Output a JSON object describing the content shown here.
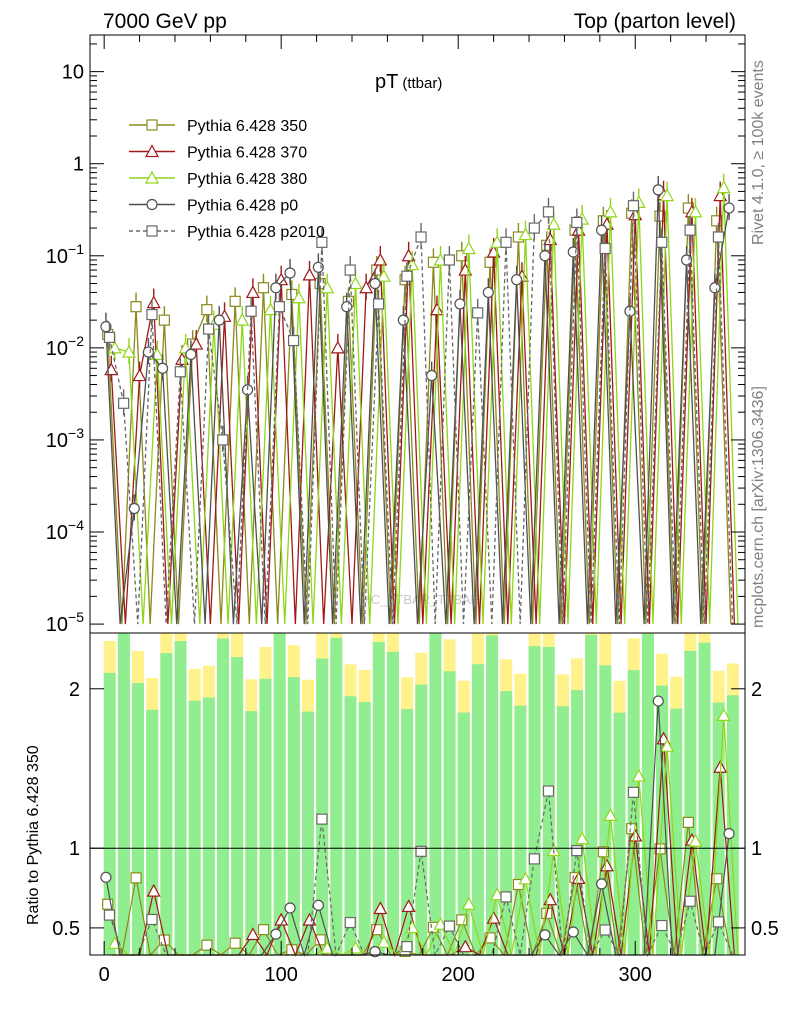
{
  "header": {
    "left": "7000 GeV pp",
    "right": "Top (parton level)"
  },
  "side_labels": {
    "rivet": "Rivet 4.1.0, ≥ 100k events",
    "mcplots": "mcplots.cern.ch [arXiv:1306.3436]"
  },
  "watermark": "MC_TTBAR_TTBAR",
  "chart_data": {
    "type": "line",
    "title_main": "pT",
    "title_sub": "(ttbar)",
    "xlabel": "",
    "ylabel_ratio": "Ratio to Pythia 6.428 350",
    "xlim": [
      -8,
      362
    ],
    "ylim": [
      8e-06,
      25
    ],
    "ylim_ratio": [
      0.33,
      2.35
    ],
    "yscale": "log",
    "x_ticks": [
      "0",
      "100",
      "200",
      "300"
    ],
    "x_tick_values": [
      0,
      100,
      200,
      300
    ],
    "y_ticks": [
      {
        "value": 10,
        "base": "10",
        "exp": ""
      },
      {
        "value": 1,
        "base": "1",
        "exp": ""
      },
      {
        "value": 0.1,
        "base": "10",
        "exp": "−1"
      },
      {
        "value": 0.01,
        "base": "10",
        "exp": "−2"
      },
      {
        "value": 0.001,
        "base": "10",
        "exp": "−3"
      },
      {
        "value": 0.0001,
        "base": "10",
        "exp": "−4"
      },
      {
        "value": 1e-05,
        "base": "10",
        "exp": "−5"
      }
    ],
    "ratio_ticks": [
      "0.5",
      "1",
      "2"
    ],
    "ratio_tick_values": [
      0.5,
      1,
      2
    ],
    "series": [
      {
        "name": "Pythia 6.428 350",
        "color": "#8a8a1e",
        "marker": "square",
        "dashed": false,
        "x": [
          2,
          10,
          18,
          26,
          34,
          42,
          50,
          58,
          66,
          74,
          82,
          90,
          98,
          106,
          114,
          122,
          130,
          138,
          146,
          154,
          162,
          170,
          178,
          186,
          194,
          202,
          210,
          218,
          226,
          234,
          242,
          250,
          258,
          266,
          274,
          282,
          290,
          298,
          306,
          314,
          322,
          330,
          338,
          346,
          354
        ],
        "y": [
          0.014,
          1e-05,
          0.028,
          1e-05,
          0.02,
          1e-05,
          0.011,
          0.026,
          1e-05,
          0.032,
          1e-05,
          0.045,
          1e-05,
          0.038,
          1e-05,
          0.05,
          1e-05,
          0.032,
          1e-05,
          0.07,
          1e-05,
          0.055,
          1e-05,
          0.085,
          1e-05,
          0.1,
          1e-05,
          0.085,
          1e-05,
          0.16,
          1e-05,
          0.13,
          1e-05,
          0.19,
          1e-05,
          0.24,
          1e-05,
          0.29,
          1e-05,
          0.27,
          1e-05,
          0.33,
          1e-05,
          0.24,
          1e-05
        ]
      },
      {
        "name": "Pythia 6.428 370",
        "color": "#a01818",
        "marker": "triangle",
        "dashed": false,
        "x": [
          4,
          12,
          20,
          28,
          36,
          44,
          52,
          60,
          68,
          76,
          84,
          92,
          100,
          108,
          116,
          124,
          132,
          140,
          148,
          156,
          164,
          172,
          180,
          188,
          196,
          204,
          212,
          220,
          228,
          236,
          244,
          252,
          260,
          268,
          276,
          284,
          292,
          300,
          308,
          316,
          324,
          332,
          340,
          348,
          356
        ],
        "y": [
          0.0058,
          1e-05,
          0.005,
          0.031,
          1e-05,
          0.0075,
          0.011,
          1e-05,
          0.022,
          1e-05,
          0.04,
          1e-05,
          0.055,
          1e-05,
          0.062,
          1e-05,
          0.01,
          1e-05,
          0.045,
          0.09,
          1e-05,
          0.1,
          1e-05,
          0.026,
          1e-05,
          0.07,
          1e-05,
          0.11,
          1e-05,
          0.06,
          1e-05,
          0.15,
          1e-05,
          0.19,
          1e-05,
          0.22,
          1e-05,
          0.28,
          1e-05,
          0.46,
          1e-05,
          0.3,
          1e-05,
          0.45,
          1e-05
        ]
      },
      {
        "name": "Pythia 6.428 380",
        "color": "#8fd61a",
        "marker": "triangle",
        "dashed": false,
        "x": [
          6,
          14,
          22,
          30,
          38,
          46,
          54,
          62,
          70,
          78,
          86,
          94,
          102,
          110,
          118,
          126,
          134,
          142,
          150,
          158,
          166,
          174,
          182,
          190,
          198,
          206,
          214,
          222,
          230,
          238,
          246,
          254,
          262,
          270,
          278,
          286,
          294,
          302,
          310,
          318,
          326,
          334,
          342,
          350,
          358
        ],
        "y": [
          0.01,
          0.009,
          1e-05,
          0.0085,
          1e-05,
          0.01,
          1e-05,
          0.018,
          1e-05,
          0.02,
          1e-05,
          0.026,
          1e-05,
          0.035,
          1e-05,
          0.045,
          1e-05,
          0.05,
          1e-05,
          0.06,
          1e-05,
          0.08,
          1e-05,
          0.09,
          1e-05,
          0.12,
          1e-05,
          0.14,
          1e-05,
          0.17,
          1e-05,
          0.22,
          1e-05,
          0.25,
          1e-05,
          0.3,
          1e-05,
          0.38,
          1e-05,
          0.45,
          1e-05,
          0.3,
          1e-05,
          0.55,
          1e-05
        ]
      },
      {
        "name": "Pythia 6.428 p0",
        "color": "#505050",
        "marker": "circle",
        "dashed": false,
        "x": [
          1,
          9,
          17,
          25,
          33,
          41,
          49,
          57,
          65,
          73,
          81,
          89,
          97,
          105,
          113,
          121,
          129,
          137,
          145,
          153,
          161,
          169,
          177,
          185,
          193,
          201,
          209,
          217,
          225,
          233,
          241,
          249,
          257,
          265,
          273,
          281,
          289,
          297,
          305,
          313,
          321,
          329,
          337,
          345,
          353
        ],
        "y": [
          0.017,
          1e-05,
          0.00018,
          0.009,
          0.006,
          1e-05,
          0.0085,
          1e-05,
          0.02,
          1e-05,
          0.0035,
          1e-05,
          0.045,
          0.065,
          1e-05,
          0.075,
          1e-05,
          0.028,
          1e-05,
          0.05,
          1e-05,
          0.02,
          1e-05,
          0.005,
          1e-05,
          0.03,
          1e-05,
          0.04,
          1e-05,
          0.055,
          1e-05,
          0.1,
          1e-05,
          0.11,
          1e-05,
          0.19,
          1e-05,
          0.025,
          1e-05,
          0.52,
          1e-05,
          0.09,
          1e-05,
          0.045,
          0.33
        ]
      },
      {
        "name": "Pythia 6.428 p2010",
        "color": "#686868",
        "marker": "square",
        "dashed": true,
        "x": [
          3,
          11,
          19,
          27,
          35,
          43,
          51,
          59,
          67,
          75,
          83,
          91,
          99,
          107,
          115,
          123,
          131,
          139,
          147,
          155,
          163,
          171,
          179,
          187,
          195,
          203,
          211,
          219,
          227,
          235,
          243,
          251,
          259,
          267,
          275,
          283,
          291,
          299,
          307,
          315,
          323,
          331,
          339,
          347,
          355
        ],
        "y": [
          0.013,
          0.0025,
          1e-05,
          0.023,
          1e-05,
          0.0055,
          1e-05,
          0.016,
          0.001,
          1e-05,
          0.025,
          1e-05,
          0.028,
          0.012,
          1e-05,
          0.14,
          1e-05,
          0.07,
          1e-05,
          0.03,
          1e-05,
          0.06,
          0.16,
          1e-05,
          0.09,
          1e-05,
          0.024,
          1e-05,
          0.14,
          1e-05,
          0.2,
          0.3,
          1e-05,
          0.23,
          1e-05,
          0.12,
          1e-05,
          0.35,
          1e-05,
          0.14,
          1e-05,
          0.19,
          1e-05,
          0.16,
          1e-05
        ]
      }
    ]
  }
}
